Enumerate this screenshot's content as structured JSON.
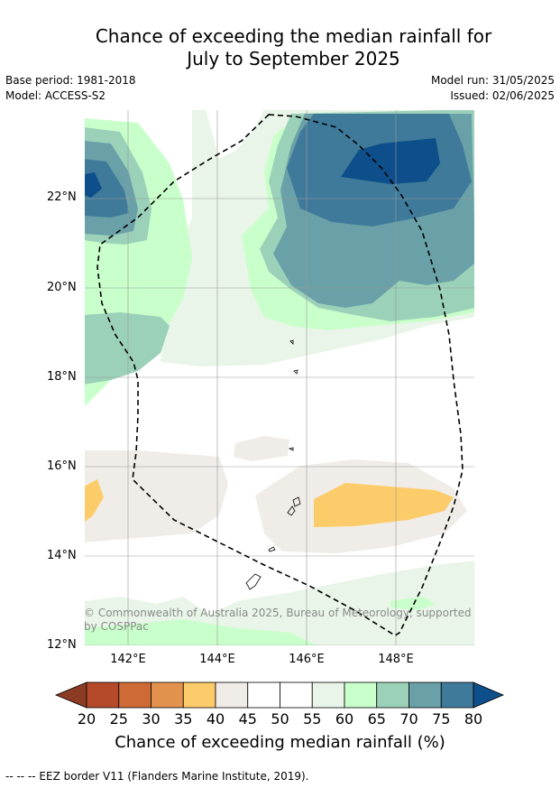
{
  "header": {
    "title_line1": "Chance of exceeding the median rainfall for",
    "title_line2": "July to September 2025",
    "base_period": "Base period: 1981-2018",
    "model": "Model: ACCESS-S2",
    "model_run": "Model run: 31/05/2025",
    "issued": "Issued: 02/06/2025"
  },
  "map": {
    "lat_labels": [
      "22°N",
      "20°N",
      "18°N",
      "16°N",
      "14°N",
      "12°N"
    ],
    "lon_labels": [
      "142°E",
      "144°E",
      "146°E",
      "148°E"
    ],
    "copyright": "© Commonwealth of Australia 2025, Bureau of Meteorology, supported by COSPPac"
  },
  "colorbar": {
    "label": "Chance of exceeding median rainfall (%)",
    "ticks": [
      "20",
      "25",
      "30",
      "35",
      "40",
      "45",
      "50",
      "55",
      "60",
      "65",
      "70",
      "75",
      "80"
    ],
    "colors": [
      "#8c3b24",
      "#b44a2a",
      "#cd6a35",
      "#e3924d",
      "#fdcc6a",
      "#f0ede8",
      "#ffffff",
      "#ffffff",
      "#e9f5e8",
      "#c9ffcb",
      "#9bd1b9",
      "#6aa1a8",
      "#3f7a9b",
      "#0e4e8a"
    ]
  },
  "legend": {
    "eez_line": "--  --  -- EEZ border V11 (Flanders Marine Institute, 2019)."
  }
}
